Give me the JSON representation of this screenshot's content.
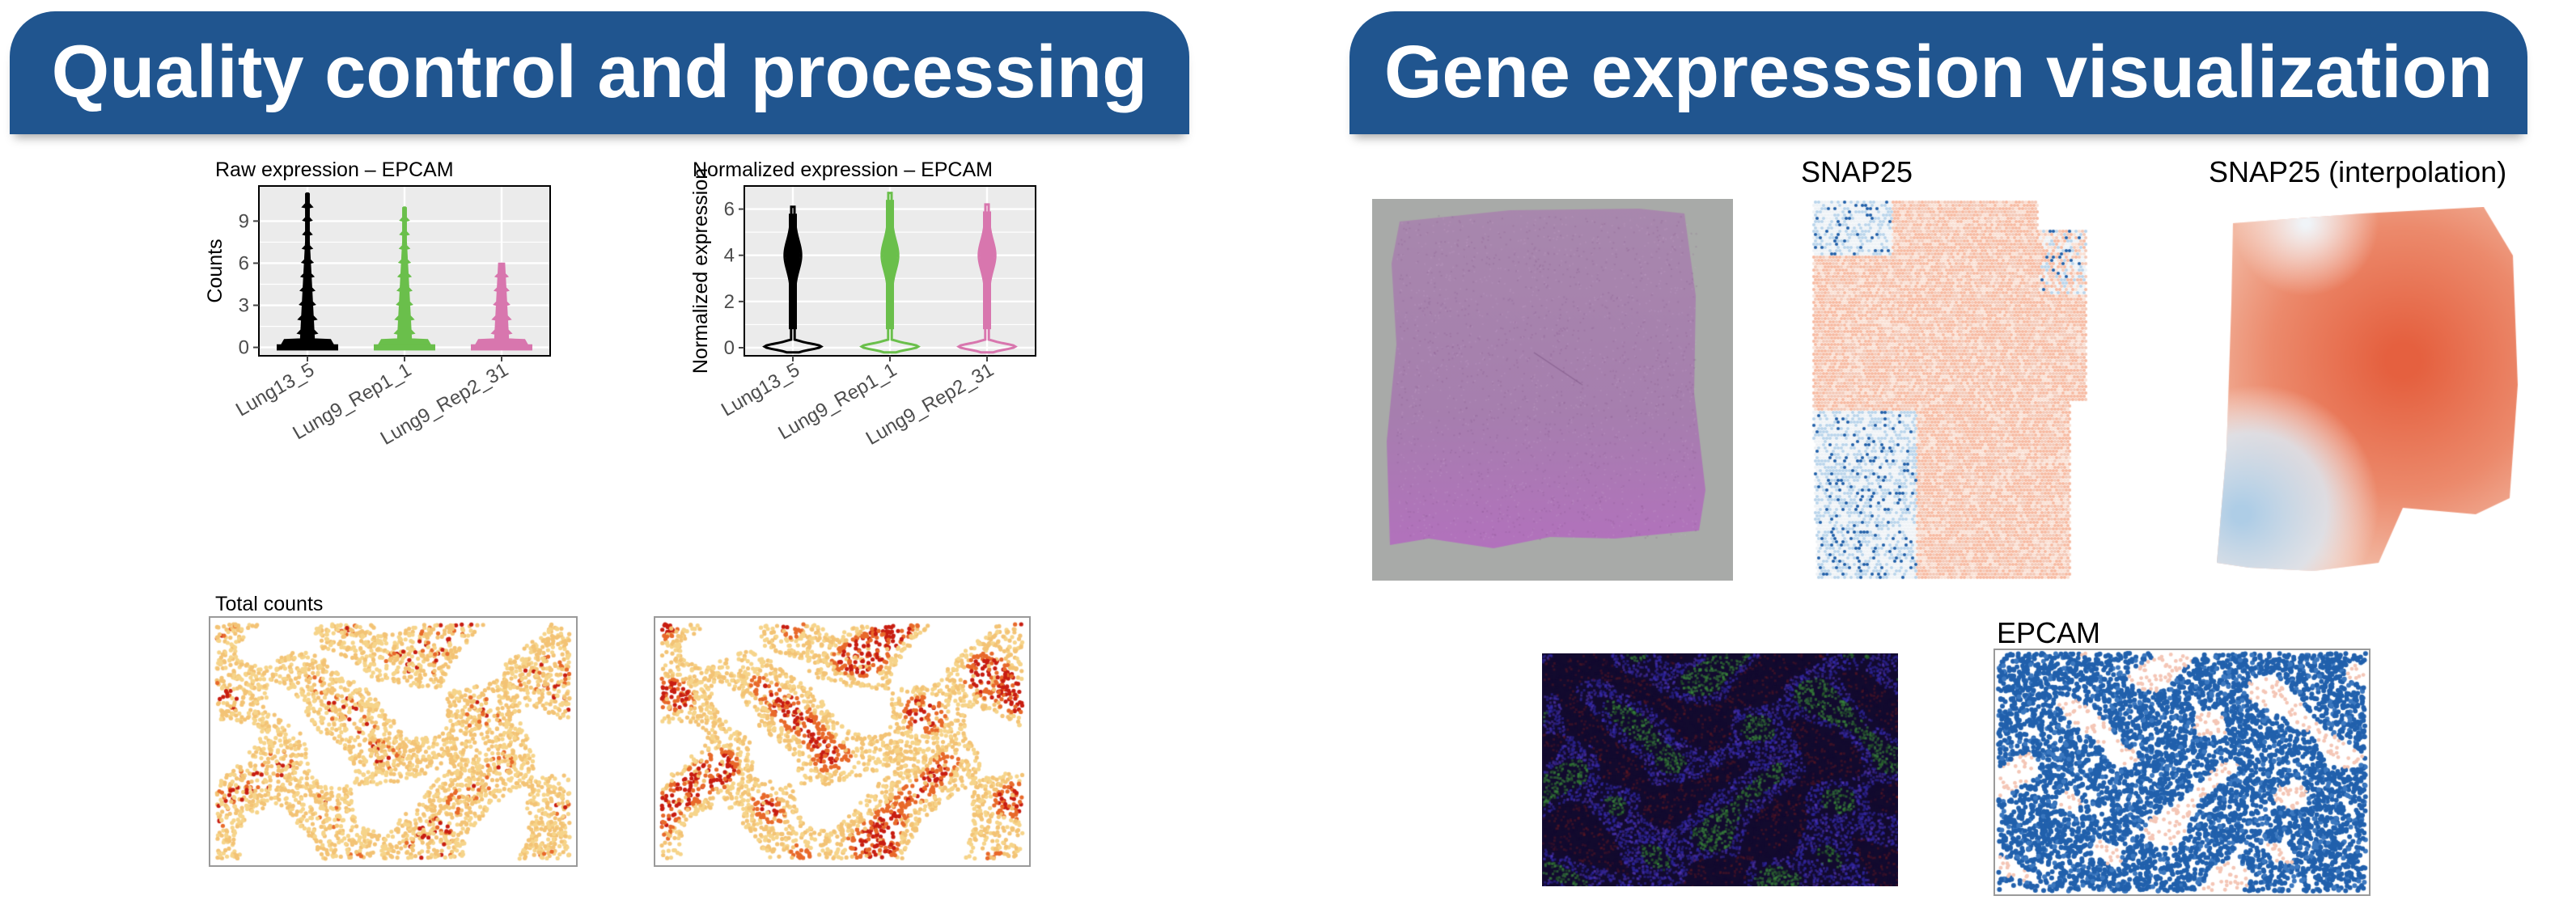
{
  "banners": {
    "left": "Quality control and processing",
    "right": "Gene expresssion visualization"
  },
  "colors": {
    "banner": "#20558f",
    "violin_series": [
      "#000000",
      "#6abf4b",
      "#d876ae"
    ],
    "panel_bg": "#ebebeb"
  },
  "raw_title": "Raw expression – EPCAM",
  "norm_title": "Normalized expression – EPCAM",
  "total_counts_title": "Total counts",
  "snap25_title": "SNAP25",
  "snap25_interp_title": "SNAP25 (interpolation)",
  "epcam_title": "EPCAM",
  "chart_data": [
    {
      "type": "violin",
      "title": "Raw expression – EPCAM",
      "ylabel": "Counts",
      "categories": [
        "Lung13_5",
        "Lung9_Rep1_1",
        "Lung9_Rep2_31"
      ],
      "yticks": [
        0,
        3,
        6,
        9
      ],
      "ylim": [
        -0.6,
        11.5
      ],
      "series": [
        {
          "name": "Lung13_5",
          "max": 11,
          "color": "#000000"
        },
        {
          "name": "Lung9_Rep1_1",
          "max": 10,
          "color": "#6abf4b"
        },
        {
          "name": "Lung9_Rep2_31",
          "max": 6,
          "color": "#d876ae"
        }
      ]
    },
    {
      "type": "violin",
      "title": "Normalized expression – EPCAM",
      "ylabel": "Normalized expression",
      "categories": [
        "Lung13_5",
        "Lung9_Rep1_1",
        "Lung9_Rep2_31"
      ],
      "yticks": [
        0,
        2,
        4,
        6
      ],
      "ylim": [
        -0.35,
        7.0
      ],
      "series": [
        {
          "name": "Lung13_5",
          "max": 6.1,
          "color": "#000000"
        },
        {
          "name": "Lung9_Rep1_1",
          "max": 6.7,
          "color": "#6abf4b"
        },
        {
          "name": "Lung9_Rep2_31",
          "max": 6.2,
          "color": "#d876ae"
        }
      ]
    }
  ]
}
